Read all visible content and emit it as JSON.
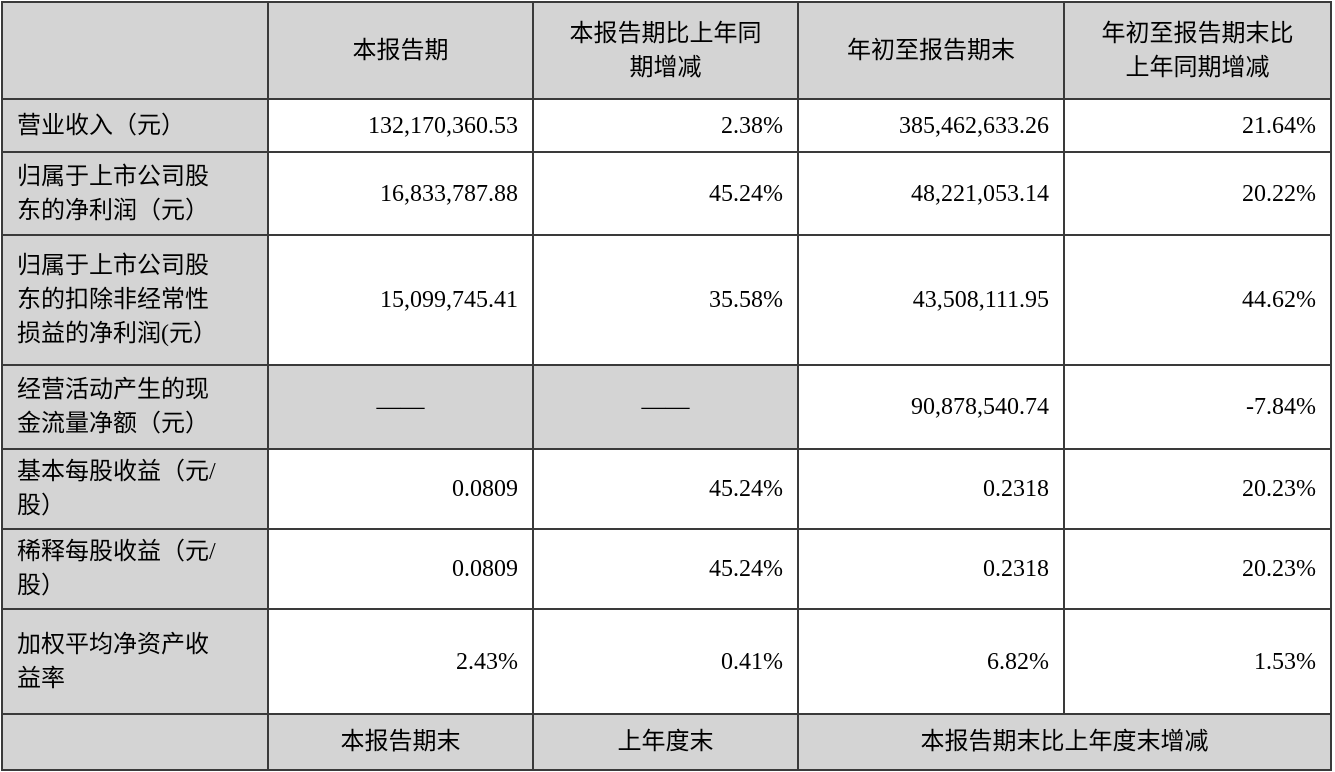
{
  "header": [
    "",
    "本报告期",
    "本报告期比上年同\n期增减",
    "年初至报告期末",
    "年初至报告期末比\n上年同期增减"
  ],
  "rows": [
    {
      "label": "营业收入（元）",
      "values": [
        "132,170,360.53",
        "2.38%",
        "385,462,633.26",
        "21.64%"
      ]
    },
    {
      "label": "归属于上市公司股\n东的净利润（元）",
      "values": [
        "16,833,787.88",
        "45.24%",
        "48,221,053.14",
        "20.22%"
      ]
    },
    {
      "label": "归属于上市公司股\n东的扣除非经常性\n损益的净利润(元）",
      "values": [
        "15,099,745.41",
        "35.58%",
        "43,508,111.95",
        "44.62%"
      ]
    },
    {
      "label": "经营活动产生的现\n金流量净额（元）",
      "values": [
        "——",
        "——",
        "90,878,540.74",
        "-7.84%"
      ]
    },
    {
      "label": "基本每股收益（元/\n股）",
      "values": [
        "0.0809",
        "45.24%",
        "0.2318",
        "20.23%"
      ]
    },
    {
      "label": "稀释每股收益（元/\n股）",
      "values": [
        "0.0809",
        "45.24%",
        "0.2318",
        "20.23%"
      ]
    },
    {
      "label": "加权平均净资产收\n益率",
      "values": [
        "2.43%",
        "0.41%",
        "6.82%",
        "1.53%"
      ]
    }
  ],
  "footer": [
    "",
    "本报告期末",
    "上年度末",
    "本报告期末比上年度末增减"
  ]
}
